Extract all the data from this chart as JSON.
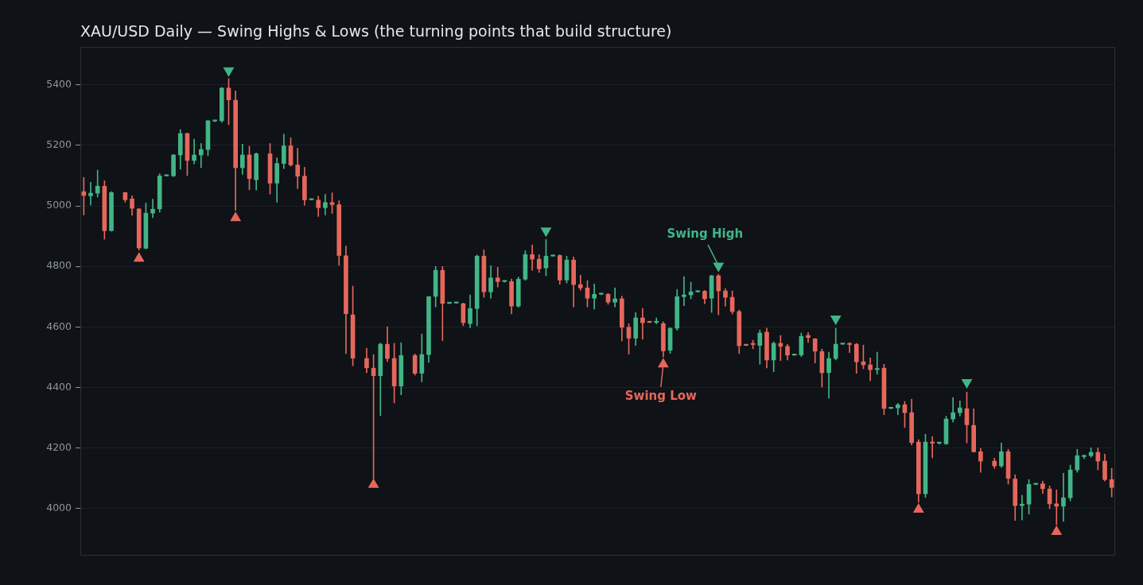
{
  "chart_data": {
    "type": "candlestick",
    "title": "XAU/USD Daily — Swing Highs & Lows (the turning points that build structure)",
    "categories": [
      null,
      null,
      null,
      null,
      null,
      null,
      null,
      null,
      null,
      null,
      null,
      null,
      null,
      null,
      null,
      null,
      null,
      null,
      null,
      null,
      null,
      null,
      null,
      null,
      null,
      null,
      null,
      null,
      null,
      null,
      null,
      null,
      null,
      null,
      null,
      null,
      null,
      null,
      null,
      null,
      null,
      null,
      null,
      null,
      null,
      null,
      null,
      null,
      null,
      null,
      null,
      null,
      null,
      null,
      null,
      null,
      null,
      null,
      null,
      null,
      null,
      null,
      null,
      null,
      null,
      null,
      null,
      null,
      null,
      null,
      null,
      null,
      null,
      null,
      null,
      null,
      null,
      null,
      null,
      null,
      null,
      null,
      null,
      null,
      null,
      null,
      null,
      null,
      null,
      null,
      null,
      null,
      null,
      null,
      null,
      null,
      null,
      null,
      null,
      null,
      null,
      null,
      null,
      null,
      null,
      null,
      null,
      null,
      null,
      null,
      null,
      null,
      null,
      null,
      null,
      null,
      null,
      null,
      null,
      null,
      null,
      null,
      null,
      null,
      null,
      null,
      null,
      null,
      null,
      null,
      null,
      null,
      null,
      null,
      null,
      null,
      null,
      null,
      null,
      null,
      null,
      null,
      null,
      null,
      null,
      null,
      null,
      null,
      null,
      null
    ],
    "ohlc": [
      [
        5047,
        5094,
        4970,
        5034
      ],
      [
        5033,
        5078,
        5003,
        5042
      ],
      [
        5042,
        5118,
        5029,
        5065
      ],
      [
        5065,
        5083,
        4890,
        4918
      ],
      [
        4918,
        5047,
        4916,
        5044
      ],
      null,
      [
        5044,
        5045,
        5012,
        5020
      ],
      [
        5023,
        5033,
        4969,
        4992
      ],
      [
        4990,
        4991,
        4854,
        4861
      ],
      [
        4860,
        5009,
        4858,
        4976
      ],
      [
        4976,
        5022,
        4961,
        4989
      ],
      [
        4990,
        5106,
        4979,
        5099
      ],
      [
        5099,
        5101,
        5098,
        5101
      ],
      [
        5099,
        5170,
        5097,
        5168
      ],
      [
        5168,
        5252,
        5121,
        5239
      ],
      [
        5239,
        5240,
        5100,
        5150
      ],
      [
        5150,
        5220,
        5139,
        5168
      ],
      [
        5168,
        5206,
        5126,
        5186
      ],
      [
        5186,
        5282,
        5166,
        5281
      ],
      [
        5280,
        5281,
        5278,
        5281
      ],
      [
        5281,
        5391,
        5276,
        5389
      ],
      [
        5389,
        5420,
        5268,
        5350
      ],
      [
        5349,
        5380,
        4985,
        5126
      ],
      [
        5126,
        5204,
        5104,
        5168
      ],
      [
        5168,
        5197,
        5053,
        5090
      ],
      [
        5086,
        5175,
        5052,
        5172
      ],
      null,
      [
        5172,
        5206,
        5039,
        5075
      ],
      [
        5075,
        5159,
        5012,
        5140
      ],
      [
        5140,
        5237,
        5123,
        5198
      ],
      [
        5198,
        5225,
        5131,
        5135
      ],
      [
        5135,
        5190,
        5057,
        5098
      ],
      [
        5098,
        5127,
        5002,
        5020
      ],
      [
        5020,
        5021,
        5019,
        5021
      ],
      [
        5019,
        5032,
        4965,
        4994
      ],
      [
        4994,
        5038,
        4970,
        5011
      ],
      [
        5011,
        5043,
        4975,
        5004
      ],
      [
        5004,
        5017,
        4804,
        4836
      ],
      [
        4835,
        4867,
        4512,
        4644
      ],
      [
        4640,
        4735,
        4472,
        4497
      ],
      null,
      [
        4496,
        4530,
        4449,
        4465
      ],
      [
        4464,
        4509,
        4099,
        4439
      ],
      [
        4439,
        4547,
        4307,
        4543
      ],
      [
        4543,
        4601,
        4486,
        4496
      ],
      [
        4496,
        4546,
        4349,
        4405
      ],
      [
        4405,
        4548,
        4376,
        4506
      ],
      null,
      [
        4506,
        4511,
        4441,
        4447
      ],
      [
        4447,
        4577,
        4419,
        4509
      ],
      [
        4509,
        4701,
        4483,
        4700
      ],
      [
        4701,
        4800,
        4666,
        4787
      ],
      [
        4787,
        4800,
        4555,
        4678
      ],
      [
        4678,
        4679,
        4677,
        4679
      ],
      [
        4679,
        4680,
        4678,
        4680
      ],
      [
        4677,
        4679,
        4604,
        4614
      ],
      [
        4611,
        4706,
        4597,
        4661
      ],
      [
        4661,
        4838,
        4604,
        4834
      ],
      [
        4834,
        4855,
        4698,
        4716
      ],
      [
        4716,
        4802,
        4695,
        4762
      ],
      [
        4762,
        4797,
        4732,
        4750
      ],
      [
        4750,
        4753,
        4748,
        4752
      ],
      [
        4750,
        4758,
        4643,
        4669
      ],
      [
        4669,
        4765,
        4665,
        4758
      ],
      [
        4758,
        4852,
        4754,
        4839
      ],
      [
        4839,
        4871,
        4787,
        4824
      ],
      [
        4824,
        4839,
        4780,
        4792
      ],
      [
        4795,
        4889,
        4769,
        4834
      ],
      [
        4834,
        4837,
        4834,
        4836
      ],
      [
        4836,
        4839,
        4741,
        4755
      ],
      [
        4755,
        4834,
        4745,
        4821
      ],
      [
        4821,
        4831,
        4666,
        4740
      ],
      [
        4740,
        4771,
        4721,
        4729
      ],
      [
        4729,
        4753,
        4666,
        4695
      ],
      [
        4695,
        4742,
        4659,
        4708
      ],
      [
        4708,
        4711,
        4706,
        4710
      ],
      [
        4708,
        4711,
        4675,
        4682
      ],
      [
        4682,
        4729,
        4666,
        4693
      ],
      [
        4693,
        4702,
        4554,
        4599
      ],
      [
        4599,
        4611,
        4510,
        4563
      ],
      [
        4563,
        4648,
        4539,
        4630
      ],
      [
        4630,
        4661,
        4560,
        4614
      ],
      [
        4616,
        4617,
        4614,
        4615
      ],
      [
        4615,
        4630,
        4610,
        4617
      ],
      [
        4611,
        4617,
        4501,
        4521
      ],
      [
        4523,
        4597,
        4513,
        4596
      ],
      [
        4596,
        4724,
        4589,
        4700
      ],
      [
        4700,
        4766,
        4670,
        4706
      ],
      [
        4706,
        4748,
        4693,
        4716
      ],
      [
        4716,
        4719,
        4715,
        4718
      ],
      [
        4718,
        4721,
        4677,
        4693
      ],
      [
        4695,
        4771,
        4648,
        4769
      ],
      [
        4769,
        4774,
        4640,
        4719
      ],
      [
        4719,
        4727,
        4669,
        4698
      ],
      [
        4698,
        4719,
        4643,
        4651
      ],
      [
        4651,
        4656,
        4512,
        4538
      ],
      [
        4540,
        4541,
        4538,
        4539
      ],
      [
        4545,
        4556,
        4528,
        4542
      ],
      [
        4539,
        4590,
        4477,
        4580
      ],
      [
        4583,
        4596,
        4465,
        4491
      ],
      [
        4491,
        4551,
        4452,
        4546
      ],
      [
        4546,
        4572,
        4489,
        4536
      ],
      [
        4536,
        4543,
        4491,
        4507
      ],
      [
        4507,
        4509,
        4506,
        4508
      ],
      [
        4508,
        4580,
        4502,
        4569
      ],
      [
        4572,
        4582,
        4549,
        4565
      ],
      [
        4561,
        4562,
        4481,
        4520
      ],
      [
        4519,
        4527,
        4402,
        4449
      ],
      [
        4449,
        4517,
        4365,
        4496
      ],
      [
        4496,
        4596,
        4491,
        4543
      ],
      [
        4543,
        4546,
        4543,
        4545
      ],
      [
        4545,
        4548,
        4515,
        4542
      ],
      [
        4543,
        4546,
        4447,
        4485
      ],
      [
        4485,
        4540,
        4462,
        4475
      ],
      [
        4475,
        4498,
        4423,
        4459
      ],
      [
        4459,
        4517,
        4444,
        4463
      ],
      [
        4464,
        4477,
        4310,
        4331
      ],
      [
        4331,
        4333,
        4330,
        4333
      ],
      [
        4333,
        4348,
        4310,
        4343
      ],
      [
        4343,
        4354,
        4268,
        4317
      ],
      [
        4317,
        4361,
        4210,
        4218
      ],
      [
        4220,
        4228,
        4021,
        4049
      ],
      [
        4049,
        4246,
        4037,
        4220
      ],
      [
        4220,
        4238,
        4168,
        4216
      ],
      [
        4216,
        4217,
        4213,
        4217
      ],
      [
        4214,
        4305,
        4212,
        4296
      ],
      [
        4296,
        4367,
        4286,
        4317
      ],
      [
        4317,
        4356,
        4306,
        4333
      ],
      [
        4330,
        4385,
        4217,
        4277
      ],
      [
        4275,
        4330,
        4186,
        4188
      ],
      [
        4188,
        4199,
        4120,
        4157
      ],
      null,
      [
        4157,
        4167,
        4133,
        4141
      ],
      [
        4141,
        4217,
        4136,
        4188
      ],
      [
        4188,
        4196,
        4081,
        4100
      ],
      [
        4098,
        4112,
        3961,
        4010
      ],
      [
        4010,
        4044,
        3963,
        4015
      ],
      [
        4015,
        4096,
        3982,
        4080
      ],
      [
        4080,
        4082,
        4079,
        4082
      ],
      [
        4082,
        4091,
        4050,
        4066
      ],
      [
        4065,
        4075,
        4000,
        4016
      ],
      [
        4016,
        4062,
        3947,
        4008
      ],
      [
        4008,
        4117,
        3958,
        4036
      ],
      [
        4036,
        4144,
        4026,
        4128
      ],
      [
        4128,
        4196,
        4120,
        4175
      ],
      [
        4172,
        4177,
        4165,
        4175
      ],
      [
        4175,
        4201,
        4170,
        4186
      ],
      [
        4186,
        4201,
        4128,
        4157
      ],
      [
        4157,
        4180,
        4091,
        4096
      ],
      [
        4096,
        4133,
        4039,
        4070
      ]
    ],
    "colors": [
      "#e5675c",
      "#41b587",
      "#41b587",
      "#e5675c",
      "#41b587",
      null,
      "#e5675c",
      "#e5675c",
      "#e5675c",
      "#41b587",
      "#41b587",
      "#41b587",
      "#41b587",
      "#41b587",
      "#41b587",
      "#e5675c",
      "#41b587",
      "#41b587",
      "#41b587",
      "#41b587",
      "#41b587",
      "#e5675c",
      "#e5675c",
      "#41b587",
      "#e5675c",
      "#41b587",
      null,
      "#e5675c",
      "#41b587",
      "#41b587",
      "#e5675c",
      "#e5675c",
      "#e5675c",
      "#41b587",
      "#e5675c",
      "#41b587",
      "#e5675c",
      "#e5675c",
      "#e5675c",
      "#e5675c",
      null,
      "#e5675c",
      "#e5675c",
      "#41b587",
      "#e5675c",
      "#e5675c",
      "#41b587",
      null,
      "#e5675c",
      "#41b587",
      "#41b587",
      "#41b587",
      "#e5675c",
      "#41b587",
      "#41b587",
      "#e5675c",
      "#41b587",
      "#41b587",
      "#e5675c",
      "#41b587",
      "#e5675c",
      "#41b587",
      "#e5675c",
      "#41b587",
      "#41b587",
      "#e5675c",
      "#e5675c",
      "#41b587",
      "#41b587",
      "#e5675c",
      "#41b587",
      "#e5675c",
      "#e5675c",
      "#e5675c",
      "#41b587",
      "#41b587",
      "#e5675c",
      "#41b587",
      "#e5675c",
      "#e5675c",
      "#41b587",
      "#e5675c",
      "#e5675c",
      "#41b587",
      "#e5675c",
      "#41b587",
      "#41b587",
      "#41b587",
      "#41b587",
      "#41b587",
      "#e5675c",
      "#41b587",
      "#e5675c",
      "#e5675c",
      "#e5675c",
      "#e5675c",
      "#e5675c",
      "#e5675c",
      "#41b587",
      "#e5675c",
      "#41b587",
      "#e5675c",
      "#e5675c",
      "#41b587",
      "#41b587",
      "#e5675c",
      "#e5675c",
      "#e5675c",
      "#41b587",
      "#41b587",
      "#41b587",
      "#e5675c",
      "#e5675c",
      "#e5675c",
      "#e5675c",
      "#41b587",
      "#e5675c",
      "#41b587",
      "#41b587",
      "#e5675c",
      "#e5675c",
      "#e5675c",
      "#41b587",
      "#e5675c",
      "#41b587",
      "#41b587",
      "#41b587",
      "#41b587",
      "#e5675c",
      "#e5675c",
      "#e5675c",
      null,
      "#e5675c",
      "#41b587",
      "#e5675c",
      "#e5675c",
      "#41b587",
      "#41b587",
      "#41b587",
      "#e5675c",
      "#e5675c",
      "#e5675c",
      "#41b587",
      "#41b587",
      "#41b587",
      "#41b587",
      "#41b587",
      "#e5675c",
      "#e5675c",
      "#e5675c"
    ],
    "series": [
      {
        "type": "scatter",
        "name": "Swing High",
        "color": "#41b587",
        "marker": "triangle",
        "values": [
          null,
          null,
          null,
          null,
          null,
          null,
          null,
          null,
          null,
          null,
          null,
          null,
          null,
          null,
          null,
          null,
          null,
          null,
          null,
          null,
          null,
          5447,
          null,
          null,
          null,
          null,
          null,
          null,
          null,
          null,
          null,
          null,
          null,
          null,
          null,
          null,
          null,
          null,
          null,
          null,
          null,
          null,
          null,
          null,
          null,
          null,
          null,
          null,
          null,
          null,
          null,
          null,
          null,
          null,
          null,
          null,
          null,
          null,
          null,
          null,
          null,
          null,
          null,
          null,
          null,
          null,
          null,
          4918,
          null,
          null,
          null,
          null,
          null,
          null,
          null,
          null,
          null,
          null,
          null,
          null,
          null,
          null,
          null,
          null,
          null,
          null,
          null,
          null,
          null,
          null,
          null,
          null,
          4802,
          null,
          null,
          null,
          null,
          null,
          null,
          null,
          null,
          null,
          null,
          null,
          null,
          null,
          null,
          null,
          null,
          4627,
          null,
          null,
          null,
          null,
          null,
          null,
          null,
          null,
          null,
          null,
          null,
          null,
          null,
          null,
          null,
          null,
          null,
          null,
          4417,
          null,
          null,
          null,
          null,
          null,
          null,
          null,
          null,
          null,
          null,
          null,
          null,
          null,
          null,
          null,
          null,
          null,
          null,
          null,
          null,
          null
        ]
      },
      {
        "type": "scatter",
        "name": "Swing Low",
        "color": "#e5675c",
        "marker": "triangle",
        "values": [
          null,
          null,
          null,
          null,
          null,
          null,
          null,
          null,
          4826,
          null,
          null,
          null,
          null,
          null,
          null,
          null,
          null,
          null,
          null,
          null,
          null,
          null,
          4960,
          null,
          null,
          null,
          null,
          null,
          null,
          null,
          null,
          null,
          null,
          null,
          null,
          null,
          null,
          null,
          null,
          null,
          null,
          null,
          4079,
          null,
          null,
          null,
          null,
          null,
          null,
          null,
          null,
          null,
          null,
          null,
          null,
          null,
          null,
          null,
          null,
          null,
          null,
          null,
          null,
          null,
          null,
          null,
          null,
          null,
          null,
          null,
          null,
          null,
          null,
          null,
          null,
          null,
          null,
          null,
          null,
          null,
          null,
          null,
          null,
          null,
          4477,
          null,
          null,
          null,
          null,
          null,
          null,
          null,
          null,
          null,
          null,
          null,
          null,
          null,
          null,
          null,
          null,
          null,
          null,
          null,
          null,
          null,
          null,
          null,
          null,
          null,
          null,
          null,
          null,
          null,
          null,
          null,
          null,
          null,
          null,
          null,
          null,
          3997,
          null,
          null,
          null,
          null,
          null,
          null,
          null,
          null,
          null,
          null,
          null,
          null,
          null,
          null,
          null,
          null,
          null,
          null,
          null,
          3924,
          null,
          null,
          null,
          null,
          null,
          null,
          null,
          null
        ]
      }
    ],
    "ylim": [
      3845,
      5525
    ],
    "yticks": [
      4000,
      4200,
      4400,
      4600,
      4800,
      5000,
      5200,
      5400
    ],
    "grid": "y",
    "tick_labels": "y"
  }
}
